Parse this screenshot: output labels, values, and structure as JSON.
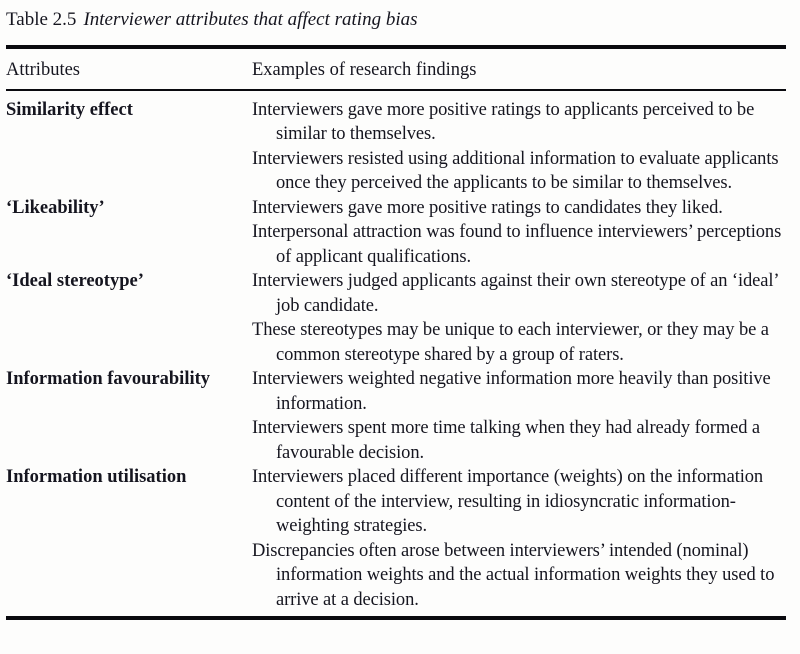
{
  "caption": {
    "label": "Table 2.5",
    "title": "Interviewer attributes that affect rating bias"
  },
  "table": {
    "headers": [
      "Attributes",
      "Examples of research findings"
    ],
    "rows": [
      {
        "attribute": "Similarity effect",
        "findings": [
          "Interviewers gave more positive ratings to applicants perceived to be similar to themselves.",
          "Interviewers resisted using additional information to evaluate applicants once they perceived the applicants to be similar to themselves."
        ]
      },
      {
        "attribute": "‘Likeability’",
        "findings": [
          "Interviewers gave more positive ratings to candidates they liked.",
          "Interpersonal attraction was found to influence interviewers’ perceptions of applicant qualifications."
        ]
      },
      {
        "attribute": "‘Ideal stereotype’",
        "findings": [
          "Interviewers judged applicants against their own stereotype of an ‘ideal’ job candidate.",
          "These stereotypes may be unique to each interviewer, or they may be a common stereotype shared by a group of raters."
        ]
      },
      {
        "attribute": "Information favourability",
        "findings": [
          "Interviewers weighted negative information more heavily than positive information.",
          "Interviewers spent more time talking when they had already formed a favourable decision."
        ]
      },
      {
        "attribute": "Information utilisation",
        "findings": [
          "Interviewers placed different importance (weights) on the information content of the interview, resulting in idiosyncratic information-weighting strategies.",
          "Discrepancies often arose between interviewers’ intended (nominal) information weights and the actual information weights they used to arrive at a decision."
        ]
      }
    ]
  }
}
